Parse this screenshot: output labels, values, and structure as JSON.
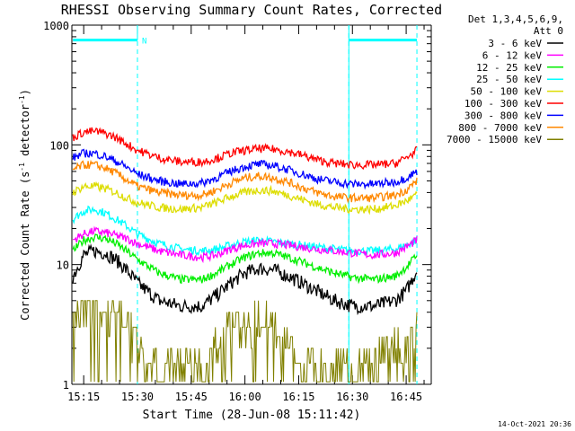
{
  "footer": {
    "timestamp": "14-Oct-2021 20:36"
  },
  "chart_data": {
    "type": "line",
    "title": "RHESSI Observing Summary Count Rates, Corrected",
    "xlabel": "Start Time (28-Jun-08 15:11:42)",
    "ylabel_main": "Corrected Count Rate (s",
    "ylabel_sup1": "-1",
    "ylabel_mid": " detector",
    "ylabel_sup2": "-1",
    "ylabel_end": ")",
    "y_scale": "log",
    "ylim": [
      1,
      1000
    ],
    "xlim": [
      "15:11:42",
      "16:52:00"
    ],
    "x_ticks": [
      "15:15",
      "15:30",
      "15:45",
      "16:00",
      "16:15",
      "16:30",
      "16:45"
    ],
    "y_ticks": [
      "1",
      "10",
      "100",
      "1000"
    ],
    "legend_header": [
      "Det 1,3,4,5,6,9,",
      "Att 0"
    ],
    "legend_position": "right",
    "series": [
      {
        "name": "3 - 6 keV",
        "color": "#000000",
        "x": [
          "15:12",
          "15:15",
          "15:18",
          "15:21",
          "15:24",
          "15:27",
          "15:30",
          "15:36",
          "15:42",
          "15:48",
          "15:52",
          "15:56",
          "16:00",
          "16:04",
          "16:08",
          "16:12",
          "16:16",
          "16:20",
          "16:25",
          "16:30",
          "16:36",
          "16:42",
          "16:45",
          "16:48"
        ],
        "y": [
          8,
          12,
          13,
          12.5,
          11,
          9,
          7,
          5,
          4.5,
          4.5,
          5.5,
          7,
          8.5,
          9.3,
          9,
          8,
          7,
          6,
          5,
          4.5,
          4.5,
          5,
          6,
          9
        ]
      },
      {
        "name": "6 - 12 keV",
        "color": "#ff00ff",
        "x": [
          "15:12",
          "15:15",
          "15:18",
          "15:21",
          "15:24",
          "15:27",
          "15:30",
          "15:36",
          "15:42",
          "15:48",
          "15:52",
          "15:56",
          "16:00",
          "16:04",
          "16:08",
          "16:12",
          "16:16",
          "16:20",
          "16:25",
          "16:30",
          "16:36",
          "16:42",
          "16:45",
          "16:48"
        ],
        "y": [
          16,
          18,
          19,
          18.5,
          17.5,
          16.5,
          15,
          13,
          12,
          11.5,
          12,
          13.5,
          14.5,
          15,
          15,
          14.5,
          14,
          13.5,
          13,
          12.5,
          12,
          12.5,
          14,
          16
        ]
      },
      {
        "name": "12 - 25 keV",
        "color": "#00ee00",
        "x": [
          "15:12",
          "15:15",
          "15:18",
          "15:21",
          "15:24",
          "15:27",
          "15:30",
          "15:36",
          "15:42",
          "15:48",
          "15:52",
          "15:56",
          "16:00",
          "16:04",
          "16:08",
          "16:12",
          "16:16",
          "16:20",
          "16:25",
          "16:30",
          "16:36",
          "16:42",
          "16:45",
          "16:48"
        ],
        "y": [
          13,
          16,
          17,
          16.5,
          15,
          13,
          11,
          8.5,
          7.5,
          7.5,
          8.5,
          10,
          11.5,
          12.5,
          12.5,
          11.5,
          10.5,
          9.5,
          8.5,
          7.8,
          7.5,
          8,
          9.5,
          12
        ]
      },
      {
        "name": "25 - 50 keV",
        "color": "#00ffff",
        "x": [
          "15:12",
          "15:15",
          "15:18",
          "15:21",
          "15:24",
          "15:27",
          "15:30",
          "15:36",
          "15:42",
          "15:48",
          "15:52",
          "15:56",
          "16:00",
          "16:04",
          "16:08",
          "16:12",
          "16:16",
          "16:20",
          "16:25",
          "16:30",
          "16:36",
          "16:42",
          "16:45",
          "16:48"
        ],
        "y": [
          24,
          28,
          29,
          27,
          24,
          21,
          18,
          15,
          13.5,
          13,
          13.5,
          14.5,
          15.5,
          16,
          15.5,
          15,
          14.5,
          14,
          13.5,
          13,
          13,
          13.5,
          14.5,
          16
        ]
      },
      {
        "name": "50 - 100 keV",
        "color": "#dddd00",
        "x": [
          "15:12",
          "15:15",
          "15:18",
          "15:21",
          "15:24",
          "15:27",
          "15:30",
          "15:36",
          "15:42",
          "15:48",
          "15:52",
          "15:56",
          "16:00",
          "16:04",
          "16:08",
          "16:12",
          "16:16",
          "16:20",
          "16:25",
          "16:30",
          "16:36",
          "16:42",
          "16:45",
          "16:48"
        ],
        "y": [
          40,
          45,
          45,
          43,
          40,
          36,
          33,
          30,
          29,
          30,
          33,
          37,
          40,
          42,
          41,
          38,
          35,
          32,
          30,
          29,
          29,
          31,
          34,
          38
        ]
      },
      {
        "name": "100 - 300 keV",
        "color": "#ff0000",
        "x": [
          "15:12",
          "15:15",
          "15:18",
          "15:21",
          "15:24",
          "15:27",
          "15:30",
          "15:36",
          "15:42",
          "15:48",
          "15:52",
          "15:56",
          "16:00",
          "16:04",
          "16:08",
          "16:12",
          "16:16",
          "16:20",
          "16:25",
          "16:30",
          "16:36",
          "16:42",
          "16:45",
          "16:48"
        ],
        "y": [
          115,
          128,
          130,
          125,
          115,
          102,
          90,
          78,
          72,
          72,
          77,
          85,
          90,
          93,
          92,
          88,
          82,
          75,
          70,
          68,
          68,
          70,
          78,
          90
        ]
      },
      {
        "name": "300 - 800 keV",
        "color": "#0000ff",
        "x": [
          "15:12",
          "15:15",
          "15:18",
          "15:21",
          "15:24",
          "15:27",
          "15:30",
          "15:36",
          "15:42",
          "15:48",
          "15:52",
          "15:56",
          "16:00",
          "16:04",
          "16:08",
          "16:12",
          "16:16",
          "16:20",
          "16:25",
          "16:30",
          "16:36",
          "16:42",
          "16:45",
          "16:48"
        ],
        "y": [
          78,
          85,
          85,
          80,
          73,
          65,
          57,
          50,
          47,
          48,
          53,
          60,
          66,
          69,
          67,
          62,
          57,
          52,
          49,
          47,
          47,
          49,
          53,
          60
        ]
      },
      {
        "name": "800 - 7000 keV",
        "color": "#ff8800",
        "x": [
          "15:12",
          "15:15",
          "15:18",
          "15:21",
          "15:24",
          "15:27",
          "15:30",
          "15:36",
          "15:42",
          "15:48",
          "15:52",
          "15:56",
          "16:00",
          "16:04",
          "16:08",
          "16:12",
          "16:16",
          "16:20",
          "16:25",
          "16:30",
          "16:36",
          "16:42",
          "16:45",
          "16:48"
        ],
        "y": [
          62,
          68,
          68,
          64,
          58,
          51,
          45,
          40,
          38,
          38,
          42,
          48,
          53,
          55,
          53,
          49,
          44,
          40,
          37,
          36,
          36,
          38,
          42,
          50
        ]
      },
      {
        "name": "7000 - 15000 keV",
        "color": "#808000",
        "x": [
          "15:12",
          "15:15",
          "15:18",
          "15:21",
          "15:24",
          "15:27",
          "15:30",
          "15:36",
          "15:42",
          "15:48",
          "15:52",
          "15:56",
          "16:00",
          "16:04",
          "16:08",
          "16:12",
          "16:16",
          "16:20",
          "16:25",
          "16:30",
          "16:36",
          "16:42",
          "16:45",
          "16:48"
        ],
        "y": [
          4,
          5,
          4.5,
          4,
          4,
          3,
          2,
          1.2,
          1.5,
          1.5,
          2,
          3,
          3,
          3.5,
          3,
          2,
          1.5,
          1.2,
          1.5,
          1.2,
          1.5,
          2,
          2.5,
          3.5
        ]
      }
    ],
    "annotations": {
      "night_boundaries": [
        "15:30",
        "16:29",
        "16:48"
      ],
      "spacecraft_day_bars": [
        [
          "15:12",
          "15:30"
        ],
        [
          "16:29",
          "16:48"
        ]
      ],
      "day_bar_level": 750,
      "saa_marker": "N"
    }
  }
}
